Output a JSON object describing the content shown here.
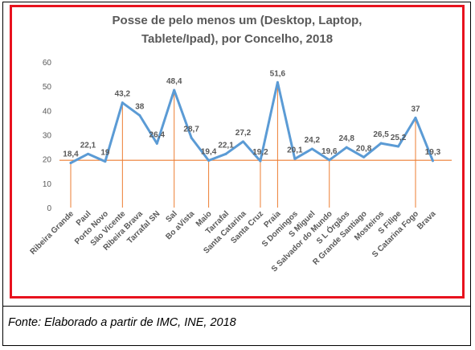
{
  "chart_data": {
    "type": "line",
    "title_lines": [
      "Posse de pelo menos um (Desktop, Laptop,",
      "Tablete/Ipad), por Concelho, 2018"
    ],
    "categories": [
      "Ribeira Grande",
      "Paul",
      "Porto Novo",
      "São Vicente",
      "Ribeira Brava",
      "Tarrafal SN",
      "Sal",
      "Bo aVista",
      "Maio",
      "Tarrafal",
      "Santa Catarina",
      "Santa Cruz",
      "Praia",
      "S Domingos",
      "S Miguel",
      "S Salvador do Mundo",
      "S L Órgãos",
      "R Grande Santiago",
      "Mosteiros",
      "S Filipe",
      "S Catarina Fogo",
      "Brava"
    ],
    "values": [
      18.4,
      22.1,
      19,
      43.2,
      38,
      26.4,
      48.4,
      28.7,
      19.4,
      22.1,
      27.2,
      19.2,
      51.6,
      20.1,
      24.2,
      19.6,
      24.8,
      20.8,
      26.5,
      25.2,
      37,
      19.3
    ],
    "value_labels": [
      "18,4",
      "22,1",
      "19",
      "43,2",
      "38",
      "26,4",
      "48,4",
      "28,7",
      "19,4",
      "22,1",
      "27,2",
      "19,2",
      "51,6",
      "20,1",
      "24,2",
      "19,6",
      "24,8",
      "20,8",
      "26,5",
      "25,2",
      "37",
      "19,3"
    ],
    "y_ticks": [
      0,
      10,
      20,
      30,
      40,
      50,
      60
    ],
    "ylim": [
      0,
      60
    ],
    "reference_line": 19.5,
    "drop_lines_at": [
      "Ribeira Grande",
      "São Vicente",
      "Sal",
      "Maio",
      "Santa Cruz",
      "Praia",
      "S Salvador do Mundo",
      "S Catarina Fogo"
    ],
    "grid": false,
    "legend": "none",
    "colors": {
      "line": "#5b9bd5",
      "reference": "#ed7d31",
      "frame": "#e8121e",
      "text": "#595959"
    }
  },
  "source_note": "Fonte: Elaborado a partir de IMC, INE, 2018"
}
